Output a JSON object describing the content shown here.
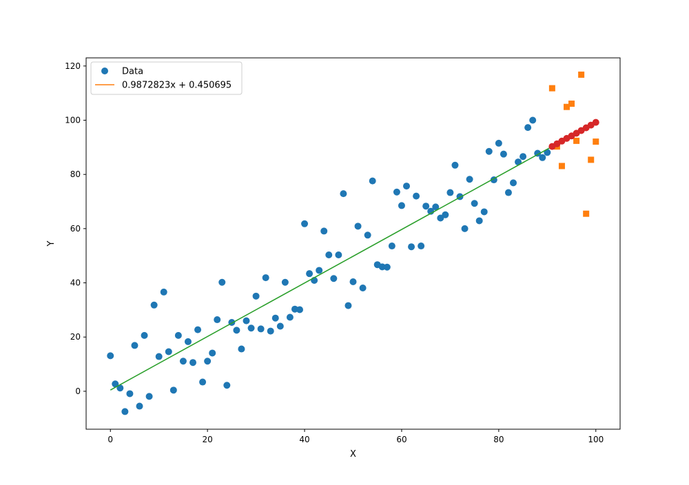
{
  "chart_data": {
    "type": "scatter",
    "title": "",
    "xlabel": "X",
    "ylabel": "Y",
    "xlim": [
      -5,
      105
    ],
    "ylim": [
      -14,
      123
    ],
    "xticks": [
      0,
      20,
      40,
      60,
      80,
      100
    ],
    "yticks": [
      0,
      20,
      40,
      60,
      80,
      100,
      120
    ],
    "grid": false,
    "legend_position": "top-left",
    "legend": [
      {
        "label": "Data",
        "marker": "circle",
        "color": "#1f77b4"
      },
      {
        "label": "0.9872823x + 0.450695",
        "marker": "line",
        "color": "#ff7f0e"
      }
    ],
    "data_points": {
      "x": [
        0,
        1,
        2,
        3,
        4,
        5,
        6,
        7,
        8,
        9,
        10,
        11,
        12,
        13,
        14,
        15,
        16,
        17,
        18,
        19,
        20,
        21,
        22,
        23,
        24,
        25,
        26,
        27,
        28,
        29,
        30,
        31,
        32,
        33,
        34,
        35,
        36,
        37,
        38,
        39,
        40,
        41,
        42,
        43,
        44,
        45,
        46,
        47,
        48,
        49,
        50,
        51,
        52,
        53,
        54,
        55,
        56,
        57,
        58,
        59,
        60,
        61,
        62,
        63,
        64,
        65,
        66,
        67,
        68,
        69,
        70,
        71,
        72,
        73,
        74,
        75,
        76,
        77,
        78,
        79,
        80,
        81,
        82,
        83,
        84,
        85,
        86,
        87,
        88,
        89,
        90
      ],
      "y": [
        13.1,
        2.7,
        1.2,
        -7.5,
        -0.9,
        16.9,
        -5.5,
        20.6,
        -1.9,
        31.8,
        12.8,
        36.6,
        14.6,
        0.4,
        20.6,
        11.1,
        18.3,
        10.6,
        22.7,
        3.4,
        11.1,
        14.1,
        26.4,
        40.2,
        2.2,
        25.4,
        22.5,
        15.6,
        26.0,
        23.3,
        35.1,
        23.0,
        41.9,
        22.2,
        27.0,
        24.0,
        40.2,
        27.3,
        30.3,
        30.1,
        61.8,
        43.4,
        40.9,
        44.6,
        59.1,
        50.3,
        41.6,
        50.3,
        72.9,
        31.6,
        40.4,
        60.9,
        38.1,
        57.6,
        77.6,
        46.7,
        45.9,
        45.8,
        53.6,
        73.5,
        68.5,
        75.7,
        53.3,
        72.0,
        53.6,
        68.3,
        66.4,
        68.0,
        63.9,
        65.1,
        73.3,
        83.4,
        71.8,
        60.0,
        78.2,
        69.3,
        62.9,
        66.2,
        88.5,
        78.0,
        91.5,
        87.5,
        73.3,
        76.9,
        84.6,
        86.6,
        97.3,
        100.0,
        87.8,
        86.2,
        88.1
      ]
    },
    "fit_line": {
      "slope": 0.9872823,
      "intercept": 0.450695,
      "x_range": [
        0,
        100
      ],
      "color": "#2ca02c"
    },
    "predicted_points": {
      "color": "#d62728",
      "x": [
        91,
        92,
        93,
        94,
        95,
        96,
        97,
        98,
        99,
        100
      ],
      "y": [
        90.3,
        91.3,
        92.3,
        93.3,
        94.2,
        95.2,
        96.2,
        97.2,
        98.2,
        99.2
      ]
    },
    "test_points": {
      "color": "#ff7f0e",
      "marker": "square",
      "x": [
        91,
        92,
        93,
        94,
        95,
        96,
        97,
        98,
        99,
        100
      ],
      "y": [
        111.8,
        90.3,
        83.1,
        104.9,
        106.1,
        92.4,
        116.8,
        65.5,
        85.4,
        92.1
      ]
    }
  }
}
